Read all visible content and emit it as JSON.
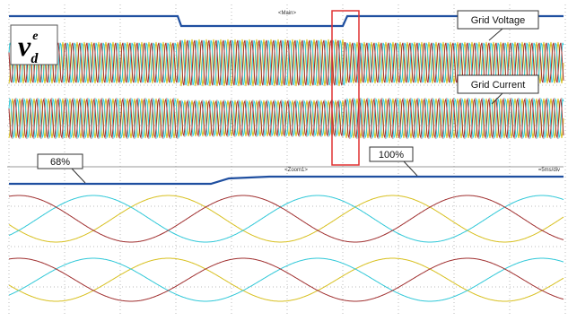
{
  "main_label": "<Main>",
  "zoom_label": "<Zoom1>",
  "time_scale": "=5ms/div",
  "symbol": {
    "base": "v",
    "subscript": "d",
    "superscript": "e"
  },
  "callouts": {
    "grid_voltage": "Grid Voltage",
    "grid_current": "Grid Current",
    "start_level": "68%",
    "end_level": "100%"
  }
}
